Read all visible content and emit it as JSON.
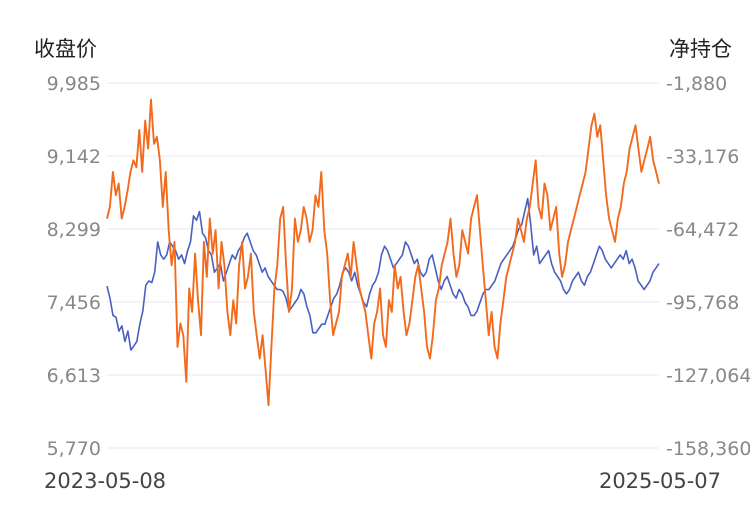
{
  "chart_data": {
    "type": "line",
    "left_axis": {
      "title": "收盘价",
      "ticks": [
        "9,985",
        "9,142",
        "8,299",
        "7,456",
        "6,613",
        "5,770"
      ],
      "ylim": [
        5770,
        9985
      ]
    },
    "right_axis": {
      "title": "净持仓",
      "ticks": [
        "-1,880",
        "-33,176",
        "-64,472",
        "-95,768",
        "-127,064",
        "-158,360"
      ],
      "ylim": [
        -158360,
        -1880
      ]
    },
    "x_start": "2023-05-08",
    "x_end": "2025-05-07",
    "grid": true,
    "series": [
      {
        "axis": "left",
        "color": "#4a5fc1",
        "values": [
          7640,
          7500,
          7300,
          7280,
          7120,
          7180,
          7000,
          7120,
          6900,
          6950,
          7000,
          7200,
          7350,
          7650,
          7700,
          7680,
          7800,
          8150,
          8000,
          7950,
          8000,
          8150,
          8100,
          8050,
          7950,
          8000,
          7900,
          8050,
          8150,
          8450,
          8400,
          8500,
          8250,
          8200,
          8050,
          8000,
          7800,
          7850,
          7900,
          7700,
          7800,
          7900,
          8000,
          7950,
          8050,
          8100,
          8200,
          8250,
          8150,
          8050,
          8000,
          7900,
          7800,
          7850,
          7750,
          7700,
          7650,
          7600,
          7600,
          7580,
          7500,
          7350,
          7400,
          7450,
          7500,
          7600,
          7550,
          7400,
          7300,
          7100,
          7100,
          7150,
          7200,
          7200,
          7300,
          7400,
          7500,
          7550,
          7650,
          7800,
          7850,
          7800,
          7700,
          7800,
          7650,
          7550,
          7450,
          7400,
          7550,
          7650,
          7700,
          7800,
          8000,
          8100,
          8050,
          7950,
          7850,
          7900,
          7950,
          8000,
          8150,
          8100,
          8000,
          7900,
          7950,
          7800,
          7750,
          7800,
          7950,
          8000,
          7850,
          7700,
          7600,
          7700,
          7750,
          7650,
          7550,
          7500,
          7600,
          7550,
          7450,
          7400,
          7300,
          7300,
          7350,
          7450,
          7550,
          7600,
          7600,
          7650,
          7700,
          7800,
          7900,
          7950,
          8000,
          8050,
          8100,
          8200,
          8300,
          8350,
          8500,
          8650,
          8350,
          8000,
          8100,
          7900,
          7950,
          8000,
          8050,
          7900,
          7800,
          7750,
          7700,
          7600,
          7550,
          7600,
          7700,
          7750,
          7800,
          7700,
          7650,
          7750,
          7800,
          7900,
          8000,
          8100,
          8050,
          7950,
          7900,
          7850,
          7900,
          7950,
          8000,
          7950,
          8050,
          7900,
          7950,
          7850,
          7700,
          7650,
          7600,
          7650,
          7700,
          7800,
          7850,
          7900
        ]
      },
      {
        "axis": "right",
        "color": "#f26b1d",
        "values": [
          -60000,
          -55000,
          -40000,
          -50000,
          -45000,
          -60000,
          -55000,
          -48000,
          -40000,
          -35000,
          -38000,
          -22000,
          -40000,
          -18000,
          -30000,
          -9000,
          -28000,
          -25000,
          -35000,
          -55000,
          -40000,
          -65000,
          -80000,
          -70000,
          -115000,
          -105000,
          -110000,
          -130000,
          -90000,
          -100000,
          -75000,
          -95000,
          -110000,
          -70000,
          -85000,
          -60000,
          -75000,
          -65000,
          -90000,
          -70000,
          -80000,
          -100000,
          -110000,
          -95000,
          -105000,
          -80000,
          -70000,
          -90000,
          -85000,
          -75000,
          -100000,
          -110000,
          -120000,
          -110000,
          -125000,
          -140000,
          -115000,
          -90000,
          -80000,
          -60000,
          -55000,
          -80000,
          -100000,
          -90000,
          -60000,
          -70000,
          -65000,
          -55000,
          -60000,
          -70000,
          -65000,
          -50000,
          -55000,
          -40000,
          -65000,
          -75000,
          -95000,
          -110000,
          -105000,
          -100000,
          -85000,
          -80000,
          -75000,
          -85000,
          -70000,
          -80000,
          -90000,
          -95000,
          -100000,
          -110000,
          -120000,
          -105000,
          -100000,
          -90000,
          -110000,
          -115000,
          -95000,
          -100000,
          -80000,
          -90000,
          -85000,
          -100000,
          -110000,
          -105000,
          -95000,
          -85000,
          -80000,
          -90000,
          -100000,
          -115000,
          -120000,
          -110000,
          -95000,
          -90000,
          -80000,
          -75000,
          -70000,
          -60000,
          -75000,
          -85000,
          -80000,
          -65000,
          -70000,
          -75000,
          -60000,
          -55000,
          -50000,
          -65000,
          -80000,
          -95000,
          -110000,
          -100000,
          -115000,
          -120000,
          -105000,
          -95000,
          -85000,
          -80000,
          -75000,
          -70000,
          -60000,
          -65000,
          -70000,
          -60000,
          -55000,
          -45000,
          -35000,
          -55000,
          -60000,
          -45000,
          -50000,
          -65000,
          -60000,
          -55000,
          -75000,
          -85000,
          -80000,
          -70000,
          -65000,
          -60000,
          -55000,
          -50000,
          -45000,
          -40000,
          -30000,
          -20000,
          -15000,
          -25000,
          -20000,
          -35000,
          -50000,
          -60000,
          -65000,
          -70000,
          -60000,
          -55000,
          -45000,
          -40000,
          -30000,
          -25000,
          -20000,
          -30000,
          -40000,
          -35000,
          -30000,
          -25000,
          -35000,
          -40000,
          -45000
        ]
      }
    ]
  }
}
